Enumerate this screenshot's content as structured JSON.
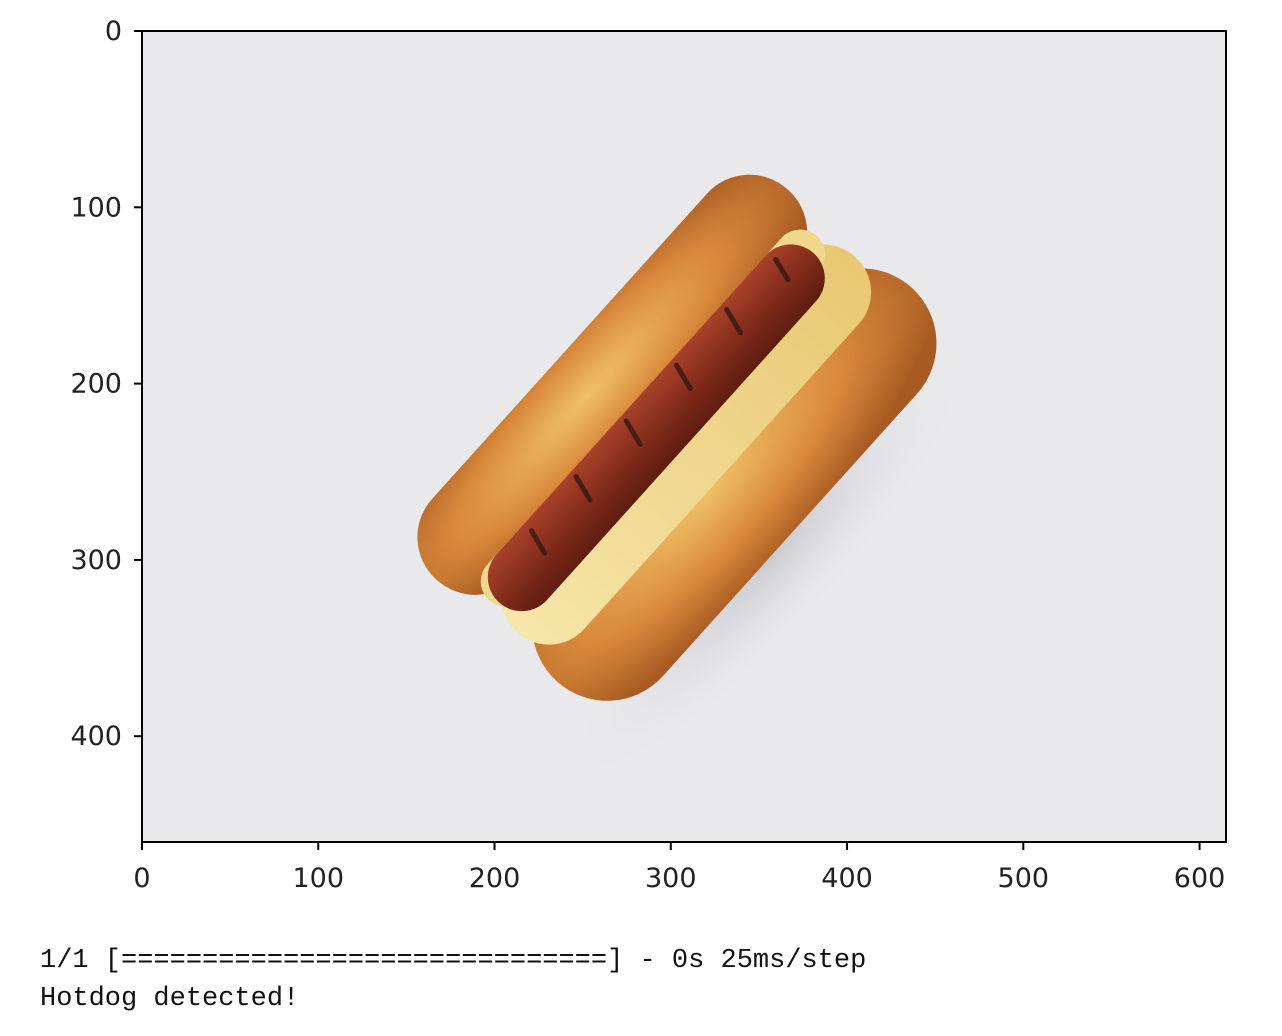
{
  "figure": {
    "image_content": "hotdog-photo",
    "colors": {
      "background": "#e9e9ec",
      "bun": "#d98a3c",
      "sausage": "#8a2f1f",
      "axis": "#000000"
    }
  },
  "chart_data": {
    "type": "image",
    "xlim": [
      0,
      615
    ],
    "ylim": [
      460,
      0
    ],
    "x_ticks": [
      "0",
      "100",
      "200",
      "300",
      "400",
      "500",
      "600"
    ],
    "y_ticks": [
      "0",
      "100",
      "200",
      "300",
      "400"
    ],
    "x_tick_values": [
      0,
      100,
      200,
      300,
      400,
      500,
      600
    ],
    "y_tick_values": [
      0,
      100,
      200,
      300,
      400
    ],
    "grid": false
  },
  "console": {
    "progress_line": "1/1 [==============================] - 0s 25ms/step",
    "result_line": "Hotdog detected!"
  }
}
